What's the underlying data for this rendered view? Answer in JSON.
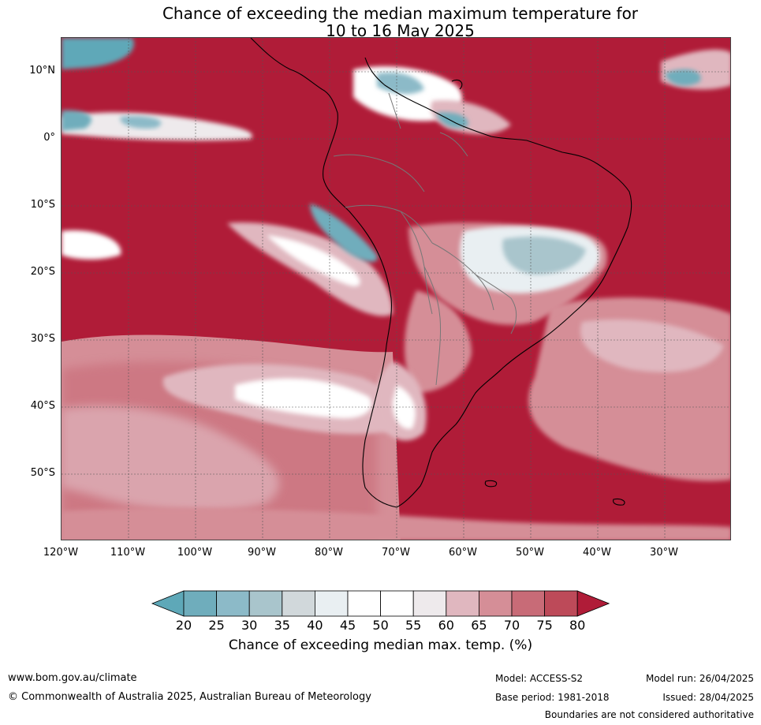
{
  "title_line1": "Chance of exceeding the median maximum temperature for",
  "title_line2": "10 to 16 May 2025",
  "lat_labels": [
    "10°N",
    "0°",
    "10°S",
    "20°S",
    "30°S",
    "40°S",
    "50°S"
  ],
  "lon_labels": [
    "120°W",
    "110°W",
    "100°W",
    "90°W",
    "80°W",
    "70°W",
    "60°W",
    "50°W",
    "40°W",
    "30°W"
  ],
  "colorbar": {
    "ticks": [
      "20",
      "25",
      "30",
      "35",
      "40",
      "45",
      "50",
      "55",
      "60",
      "65",
      "70",
      "75",
      "80"
    ],
    "label": "Chance of exceeding median max. temp. (%)",
    "colors": [
      "#5ea8b8",
      "#6fadbc",
      "#8cbac8",
      "#a9c5cc",
      "#d1d8db",
      "#e9eff2",
      "#ffffff",
      "#ffffff",
      "#eeeaec",
      "#e0b7bf",
      "#d58e97",
      "#c86b77",
      "#bd4a59",
      "#b01c38"
    ]
  },
  "footer": {
    "website": "www.bom.gov.au/climate",
    "copyright": "© Commonwealth of Australia 2025, Australian Bureau of Meteorology",
    "model": "Model: ACCESS-S2",
    "base_period": "Base period: 1981-2018",
    "model_run": "Model run: 26/04/2025",
    "issued": "Issued: 28/04/2025",
    "disclaimer": "Boundaries are not considered authoritative"
  }
}
